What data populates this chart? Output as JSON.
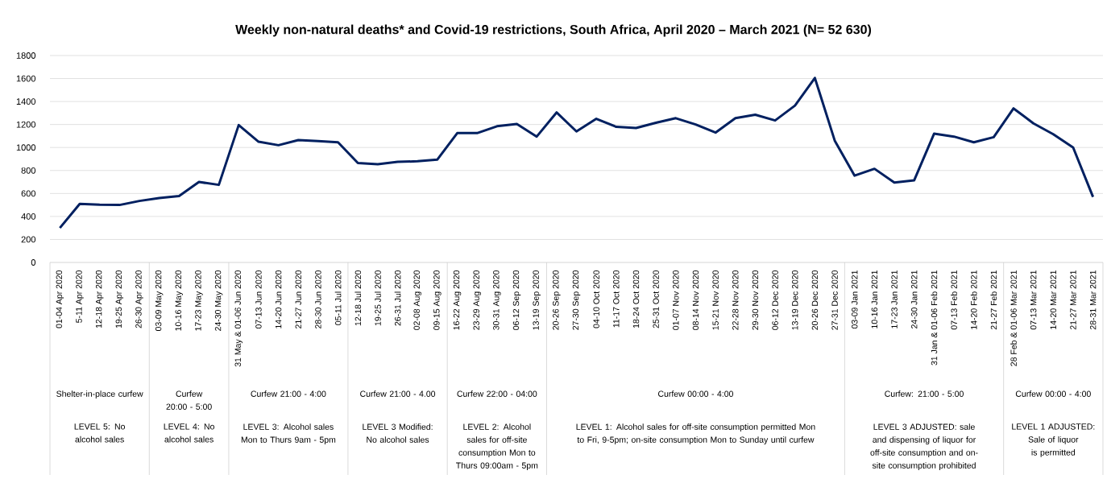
{
  "chart_data": {
    "type": "line",
    "title": "Weekly non-natural deaths* and Covid-19 restrictions, South Africa, April 2020 – March 2021 (N= 52 630)",
    "categories": [
      "01-04 Apr 2020",
      "5-11 Apr 2020",
      "12-18 Apr 2020",
      "19-25 Apr 2020",
      "26-30 Apr 2020",
      "03-09 May 2020",
      "10-16 May 2020",
      "17-23 May 2020",
      "24-30 May 2020",
      "31 May & 01-06 Jun 2020",
      "07-13 Jun 2020",
      "14-20 Jun 2020",
      "21-27 Jun 2020",
      "28-30 Jun 2020",
      "05-11 Jul 2020",
      "12-18 Jul 2020",
      "19-25 Jul 2020",
      "26-31 Jul 2020",
      "02-08 Aug 2020",
      "09-15 Aug 2020",
      "16-22 Aug 2020",
      "23-29 Aug 2020",
      "30-31 Aug 2020",
      "06-12 Sep 2020",
      "13-19 Sep 2020",
      "20-26 Sep 2020",
      "27-30 Sep 2020",
      "04-10 Oct 2020",
      "11-17 Oct 2020",
      "18-24 Oct 2020",
      "25-31 Oct 2020",
      "01-07 Nov 2020",
      "08-14 Nov 2020",
      "15-21 Nov 2020",
      "22-28 Nov 2020",
      "29-30 Nov 2020",
      "06-12 Dec 2020",
      "13-19 Dec 2020",
      "20-26 Dec 2020",
      "27-31 Dec 2020",
      "03-09 Jan 2021",
      "10-16 Jan 2021",
      "17-23 Jan 2021",
      "24-30 Jan 2021",
      "31 Jan & 01-06 Feb 2021",
      "07-13 Feb 2021",
      "14-20 Feb 2021",
      "21-27 Feb 2021",
      "28 Feb & 01-06 Mar 2021",
      "07-13 Mar 2021",
      "14-20 Mar 2021",
      "21-27 Mar 2021",
      "28-31 Mar 2021"
    ],
    "series": [
      {
        "color": "#002060",
        "values": [
          300,
          510,
          502,
          500,
          535,
          560,
          578,
          700,
          675,
          1195,
          1050,
          1020,
          1065,
          1055,
          1045,
          865,
          855,
          875,
          880,
          895,
          1125,
          1125,
          1185,
          1205,
          1095,
          1305,
          1140,
          1250,
          1180,
          1170,
          1215,
          1255,
          1200,
          1130,
          1255,
          1285,
          1235,
          1365,
          1605,
          1060,
          755,
          815,
          695,
          715,
          1120,
          1095,
          1045,
          1090,
          1340,
          1210,
          1115,
          1000,
          570
        ]
      }
    ],
    "ylim": [
      0,
      1800
    ],
    "yticks": [
      0,
      200,
      400,
      600,
      800,
      1000,
      1200,
      1400,
      1600,
      1800
    ],
    "grid": "y",
    "annotations": [
      "Shelter-in-place curfew",
      "LEVEL 5: No alcohol sales",
      "Curfew 20:00 - 5:00",
      "LEVEL 4: No alcohol sales",
      "Curfew 21:00 - 4:00",
      "LEVEL 3: Alcohol sales Mon to Thurs 9am - 5pm",
      "Curfew 21:00 - 4.00",
      "LEVEL 3 Modified: No alcohol sales",
      "Curfew 22:00 - 04:00",
      "LEVEL 2: Alcohol sales for off-site consumption Mon to Thurs 09:00am - 5pm",
      "Curfew 00:00 - 4:00",
      "LEVEL 1: Alcohol sales for off-site consumption permitted Mon to Fri, 9-5pm; on-site consumption Mon to Sunday until curfew",
      "Curfew: 21:00 - 5:00",
      "LEVEL 3 ADJUSTED: sale and dispensing of liquor for off-site consumption and on-site consumption prohibited",
      "Curfew 00:00 - 4:00",
      "LEVEL 1 ADJUSTED: Sale of liquor is permitted"
    ]
  }
}
